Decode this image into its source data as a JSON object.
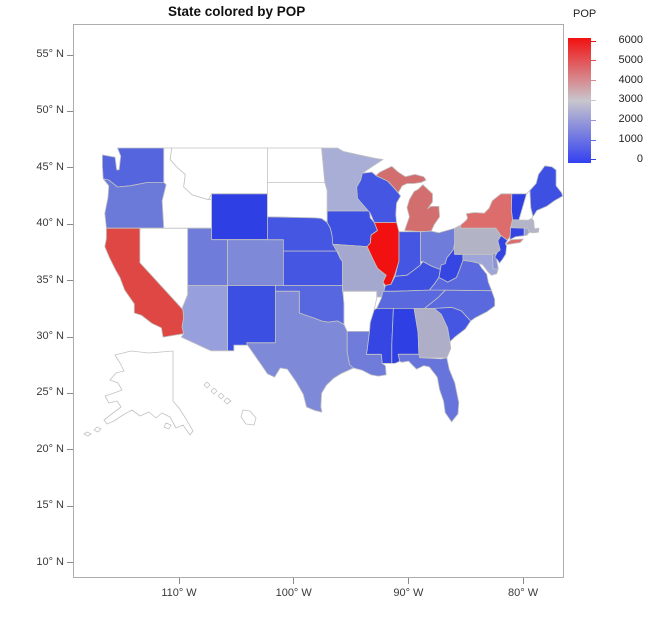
{
  "title": "State colored by POP",
  "legend": {
    "title": "POP",
    "ticks": [
      "6000",
      "5000",
      "4000",
      "3000",
      "2000",
      "1000",
      "0"
    ],
    "gradient_top": "#F21111",
    "gradient_mid": "#C8C6CD",
    "gradient_bottom": "#3340F0"
  },
  "axes": {
    "x_ticks": [
      "110° W",
      "100° W",
      "90° W",
      "80° W"
    ],
    "y_ticks": [
      "55° N",
      "50° N",
      "45° N",
      "40° N",
      "35° N",
      "30° N",
      "25° N",
      "20° N",
      "15° N",
      "10° N"
    ]
  },
  "chart_data": {
    "type": "heatmap",
    "subtype": "us_choropleth_map",
    "title": "State colored by POP",
    "variable": "POP",
    "color_scale": {
      "min": 0,
      "max": 6000,
      "min_color": "#3340F0",
      "mid_color": "#C8C6CD",
      "max_color": "#F21111",
      "missing_color": "#FFFFFF"
    },
    "x_axis": {
      "label_format": "degrees west",
      "ticks": [
        -110,
        -100,
        -90,
        -80
      ]
    },
    "y_axis": {
      "label_format": "degrees north",
      "ticks": [
        55,
        50,
        45,
        40,
        35,
        30,
        25,
        20,
        15,
        10
      ]
    },
    "states": [
      {
        "abbr": "WA",
        "name": "Washington",
        "fill": "#5565DE",
        "pop_est": 1100
      },
      {
        "abbr": "OR",
        "name": "Oregon",
        "fill": "#6B79D9",
        "pop_est": 1650
      },
      {
        "abbr": "CA",
        "name": "California",
        "fill": "#DE4743",
        "pop_est": 4900
      },
      {
        "abbr": "NV",
        "name": "Nevada",
        "fill": "#FFFFFF",
        "pop_est": null
      },
      {
        "abbr": "ID",
        "name": "Idaho",
        "fill": "#FFFFFF",
        "pop_est": null
      },
      {
        "abbr": "MT",
        "name": "Montana",
        "fill": "#FFFFFF",
        "pop_est": null
      },
      {
        "abbr": "WY",
        "name": "Wyoming",
        "fill": "#2E3FE3",
        "pop_est": 400
      },
      {
        "abbr": "UT",
        "name": "Utah",
        "fill": "#6F7CDA",
        "pop_est": 1750
      },
      {
        "abbr": "CO",
        "name": "Colorado",
        "fill": "#7E8AD8",
        "pop_est": 2050
      },
      {
        "abbr": "AZ",
        "name": "Arizona",
        "fill": "#97A0DC",
        "pop_est": 2500
      },
      {
        "abbr": "NM",
        "name": "New Mexico",
        "fill": "#3B4FE2",
        "pop_est": 650
      },
      {
        "abbr": "ND",
        "name": "North Dakota",
        "fill": "#FFFFFF",
        "pop_est": null
      },
      {
        "abbr": "SD",
        "name": "South Dakota",
        "fill": "#FFFFFF",
        "pop_est": null
      },
      {
        "abbr": "NE",
        "name": "Nebraska",
        "fill": "#4456E2",
        "pop_est": 850
      },
      {
        "abbr": "KS",
        "name": "Kansas",
        "fill": "#4456E2",
        "pop_est": 850
      },
      {
        "abbr": "OK",
        "name": "Oklahoma",
        "fill": "#5667E0",
        "pop_est": 1150
      },
      {
        "abbr": "TX",
        "name": "Texas",
        "fill": "#7E8AD8",
        "pop_est": 2050
      },
      {
        "abbr": "MN",
        "name": "Minnesota",
        "fill": "#A9AED6",
        "pop_est": 2850
      },
      {
        "abbr": "IA",
        "name": "Iowa",
        "fill": "#3D50E2",
        "pop_est": 700
      },
      {
        "abbr": "MO",
        "name": "Missouri",
        "fill": "#A4A8CE",
        "pop_est": 2800
      },
      {
        "abbr": "AR",
        "name": "Arkansas",
        "fill": "#FFFFFF",
        "pop_est": null
      },
      {
        "abbr": "LA",
        "name": "Louisiana",
        "fill": "#6F7CDA",
        "pop_est": 1750
      },
      {
        "abbr": "WI",
        "name": "Wisconsin",
        "fill": "#4456E2",
        "pop_est": 850
      },
      {
        "abbr": "IL",
        "name": "Illinois",
        "fill": "#F21111",
        "pop_est": 5950
      },
      {
        "abbr": "MI",
        "name": "Michigan",
        "fill": "#D26F6E",
        "pop_est": 4350
      },
      {
        "abbr": "IN",
        "name": "Indiana",
        "fill": "#4456E2",
        "pop_est": 850
      },
      {
        "abbr": "OH",
        "name": "Ohio",
        "fill": "#6F7CDA",
        "pop_est": 1750
      },
      {
        "abbr": "KY",
        "name": "Kentucky",
        "fill": "#3D50E2",
        "pop_est": 700
      },
      {
        "abbr": "TN",
        "name": "Tennessee",
        "fill": "#5A69DE",
        "pop_est": 1250
      },
      {
        "abbr": "MS",
        "name": "Mississippi",
        "fill": "#3546E3",
        "pop_est": 550
      },
      {
        "abbr": "AL",
        "name": "Alabama",
        "fill": "#2E3FE3",
        "pop_est": 400
      },
      {
        "abbr": "GA",
        "name": "Georgia",
        "fill": "#AEAEC9",
        "pop_est": 3000
      },
      {
        "abbr": "FL",
        "name": "Florida",
        "fill": "#6674DB",
        "pop_est": 1500
      },
      {
        "abbr": "SC",
        "name": "South Carolina",
        "fill": "#4456E2",
        "pop_est": 850
      },
      {
        "abbr": "NC",
        "name": "North Carolina",
        "fill": "#5A69DE",
        "pop_est": 1250
      },
      {
        "abbr": "VA",
        "name": "Virginia",
        "fill": "#5A69DE",
        "pop_est": 1250
      },
      {
        "abbr": "WV",
        "name": "West Virginia",
        "fill": "#3546E3",
        "pop_est": 550
      },
      {
        "abbr": "MD",
        "name": "Maryland",
        "fill": "#9EA5D8",
        "pop_est": 2650
      },
      {
        "abbr": "DE",
        "name": "Delaware",
        "fill": "#8A93D8",
        "pop_est": 2300
      },
      {
        "abbr": "PA",
        "name": "Pennsylvania",
        "fill": "#B3B3C6",
        "pop_est": 3100
      },
      {
        "abbr": "NY",
        "name": "New York",
        "fill": "#DC6D6C",
        "pop_est": 4500
      },
      {
        "abbr": "NJ",
        "name": "New Jersey",
        "fill": "#3344E3",
        "pop_est": 500
      },
      {
        "abbr": "CT",
        "name": "Connecticut",
        "fill": "#3344E3",
        "pop_est": 500
      },
      {
        "abbr": "RI",
        "name": "Rhode Island",
        "fill": "#9EA3D2",
        "pop_est": 2650
      },
      {
        "abbr": "MA",
        "name": "Massachusetts",
        "fill": "#B4B4C8",
        "pop_est": 3100
      },
      {
        "abbr": "VT",
        "name": "Vermont",
        "fill": "#2E3FE3",
        "pop_est": 400
      },
      {
        "abbr": "NH",
        "name": "New Hampshire",
        "fill": "#FFFFFF",
        "pop_est": null
      },
      {
        "abbr": "ME",
        "name": "Maine",
        "fill": "#3D50E2",
        "pop_est": 700
      },
      {
        "abbr": "AK",
        "name": "Alaska",
        "fill": "#FFFFFF",
        "pop_est": null
      },
      {
        "abbr": "HI",
        "name": "Hawaii",
        "fill": "#FFFFFF",
        "pop_est": null
      }
    ]
  }
}
